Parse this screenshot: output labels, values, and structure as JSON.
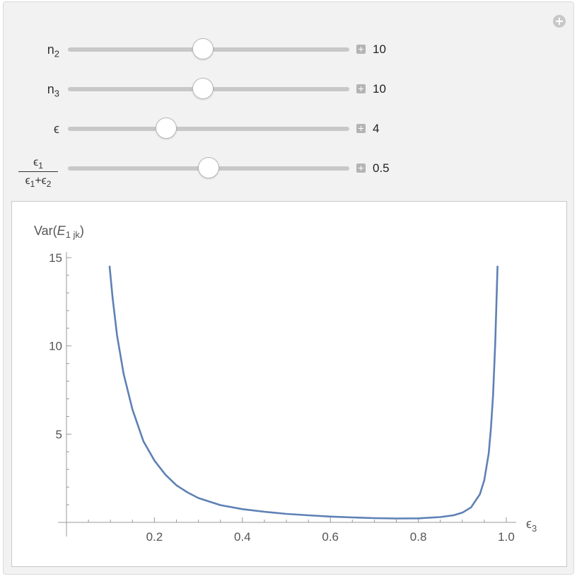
{
  "controls": [
    {
      "name": "n2",
      "label_base": "n",
      "label_sub": "2",
      "value": "10",
      "position_fraction": 0.48
    },
    {
      "name": "n3",
      "label_base": "n",
      "label_sub": "3",
      "value": "10",
      "position_fraction": 0.48
    },
    {
      "name": "epsilon",
      "label_base": "ϵ",
      "label_sub": "",
      "value": "4",
      "position_fraction": 0.35
    },
    {
      "name": "ratio",
      "frac_num_base": "ϵ",
      "frac_num_sub": "1",
      "frac_den_a": "ϵ",
      "frac_den_a_sub": "1",
      "frac_den_plus": "+",
      "frac_den_b": "ϵ",
      "frac_den_b_sub": "2",
      "value": "0.5",
      "position_fraction": 0.5
    }
  ],
  "chart_data": {
    "type": "line",
    "ylabel_prefix": "Var(",
    "ylabel_var": "E",
    "ylabel_sub": "1 jk",
    "ylabel_suffix": ")",
    "xlabel_base": "ϵ",
    "xlabel_sub": "3",
    "xlim": [
      0,
      1.0
    ],
    "ylim": [
      0,
      15
    ],
    "x_ticks": [
      "0.2",
      "0.4",
      "0.6",
      "0.8",
      "1.0"
    ],
    "x_tick_values": [
      0.2,
      0.4,
      0.6,
      0.8,
      1.0
    ],
    "y_ticks": [
      "5",
      "10",
      "15"
    ],
    "y_tick_values": [
      5,
      10,
      15
    ],
    "line_color": "#5e81b5",
    "series": [
      {
        "x": [
          0.098,
          0.105,
          0.115,
          0.13,
          0.15,
          0.175,
          0.2,
          0.225,
          0.25,
          0.275,
          0.3,
          0.35,
          0.4,
          0.45,
          0.5,
          0.55,
          0.6,
          0.65,
          0.7,
          0.75,
          0.8,
          0.85,
          0.88,
          0.9,
          0.92,
          0.94,
          0.95,
          0.96,
          0.965,
          0.97,
          0.975,
          0.98
        ],
        "y": [
          14.5,
          12.7,
          10.6,
          8.4,
          6.4,
          4.6,
          3.5,
          2.7,
          2.1,
          1.7,
          1.38,
          0.98,
          0.75,
          0.6,
          0.48,
          0.4,
          0.33,
          0.28,
          0.24,
          0.22,
          0.23,
          0.3,
          0.4,
          0.55,
          0.85,
          1.6,
          2.4,
          3.9,
          5.3,
          7.2,
          10.2,
          14.5
        ]
      }
    ]
  }
}
